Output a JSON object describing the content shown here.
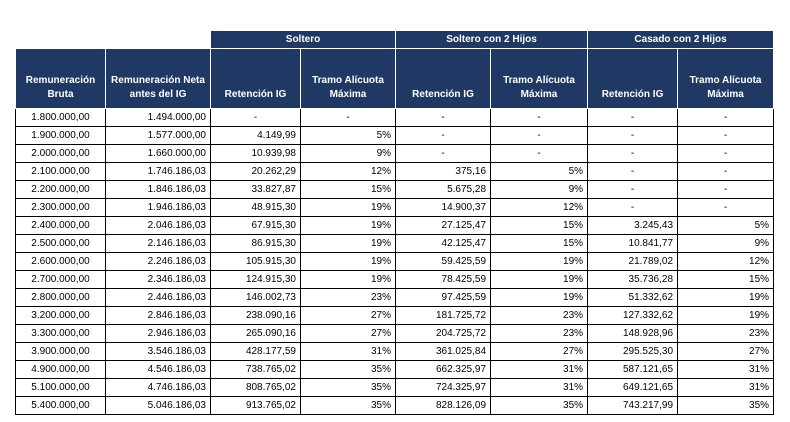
{
  "table": {
    "groups": [
      "Soltero",
      "Soltero con 2 Hijos",
      "Casado con 2 Hijos"
    ],
    "headers": [
      "Remuneración Bruta",
      "Remuneración Neta antes del IG",
      "Retención IG",
      "Tramo Alícuota Máxima",
      "Retención IG",
      "Tramo Alícuota Máxima",
      "Retención IG",
      "Tramo Alícuota Máxima"
    ],
    "rows": [
      [
        "1.800.000,00",
        "1.494.000,00",
        "-",
        "-",
        "-",
        "-",
        "-",
        "-"
      ],
      [
        "1.900.000,00",
        "1.577.000,00",
        "4.149,99",
        "5%",
        "-",
        "-",
        "-",
        "-"
      ],
      [
        "2.000.000,00",
        "1.660.000,00",
        "10.939,98",
        "9%",
        "-",
        "-",
        "-",
        "-"
      ],
      [
        "2.100.000,00",
        "1.746.186,03",
        "20.262,29",
        "12%",
        "375,16",
        "5%",
        "-",
        "-"
      ],
      [
        "2.200.000,00",
        "1.846.186,03",
        "33.827,87",
        "15%",
        "5.675,28",
        "9%",
        "-",
        "-"
      ],
      [
        "2.300.000,00",
        "1.946.186,03",
        "48.915,30",
        "19%",
        "14.900,37",
        "12%",
        "-",
        "-"
      ],
      [
        "2.400.000,00",
        "2.046.186,03",
        "67.915,30",
        "19%",
        "27.125,47",
        "15%",
        "3.245,43",
        "5%"
      ],
      [
        "2.500.000,00",
        "2.146.186,03",
        "86.915,30",
        "19%",
        "42.125,47",
        "15%",
        "10.841,77",
        "9%"
      ],
      [
        "2.600.000,00",
        "2.246.186,03",
        "105.915,30",
        "19%",
        "59.425,59",
        "19%",
        "21.789,02",
        "12%"
      ],
      [
        "2.700.000,00",
        "2.346.186,03",
        "124.915,30",
        "19%",
        "78.425,59",
        "19%",
        "35.736,28",
        "15%"
      ],
      [
        "2.800.000,00",
        "2.446.186,03",
        "146.002,73",
        "23%",
        "97.425,59",
        "19%",
        "51.332,62",
        "19%"
      ],
      [
        "3.200.000,00",
        "2.846.186,03",
        "238.090,16",
        "27%",
        "181.725,72",
        "23%",
        "127.332,62",
        "19%"
      ],
      [
        "3.300.000,00",
        "2.946.186,03",
        "265.090,16",
        "27%",
        "204.725,72",
        "23%",
        "148.928,96",
        "23%"
      ],
      [
        "3.900.000,00",
        "3.546.186,03",
        "428.177,59",
        "31%",
        "361.025,84",
        "27%",
        "295.525,30",
        "27%"
      ],
      [
        "4.900.000,00",
        "4.546.186,03",
        "738.765,02",
        "35%",
        "662.325,97",
        "31%",
        "587.121,65",
        "31%"
      ],
      [
        "5.100.000,00",
        "4.746.186,03",
        "808.765,02",
        "35%",
        "724.325,97",
        "31%",
        "649.121,65",
        "31%"
      ],
      [
        "5.400.000,00",
        "5.046.186,03",
        "913.765,02",
        "35%",
        "828.126,09",
        "35%",
        "743.217,99",
        "35%"
      ]
    ]
  }
}
